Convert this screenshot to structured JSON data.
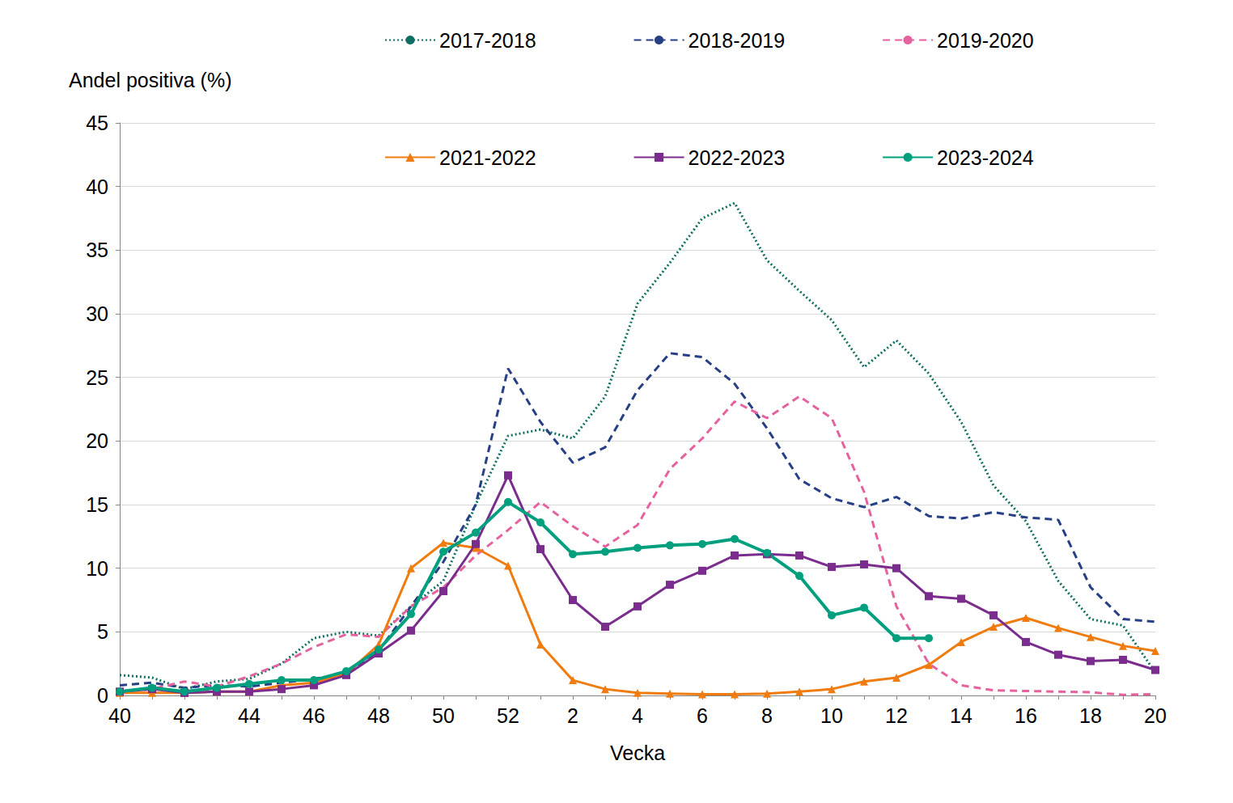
{
  "chart_data": {
    "type": "line",
    "y_label": "Andel positiva (%)",
    "x_label": "Vecka",
    "categories": [
      40,
      null,
      42,
      null,
      44,
      null,
      46,
      null,
      48,
      null,
      50,
      null,
      52,
      null,
      2,
      null,
      4,
      null,
      6,
      null,
      8,
      null,
      10,
      null,
      12,
      null,
      14,
      null,
      16,
      null,
      18,
      null,
      20
    ],
    "ylim": [
      0,
      45
    ],
    "yticks": [
      0,
      5,
      10,
      15,
      20,
      25,
      30,
      35,
      40,
      45
    ],
    "grid": true,
    "legend": "top",
    "series": [
      {
        "name": "2017-2018",
        "color": "#0e6f62",
        "line_style": "dotted",
        "marker": "none",
        "values": [
          1.6,
          1.4,
          0.5,
          1.1,
          1.3,
          2.5,
          4.5,
          5.0,
          4.7,
          7.0,
          9.0,
          15.0,
          20.4,
          20.9,
          20.2,
          23.5,
          30.8,
          34.0,
          37.5,
          38.7,
          34.2,
          31.8,
          29.5,
          25.8,
          27.9,
          25.3,
          21.5,
          16.5,
          13.7,
          9.0,
          6.0,
          5.5,
          1.8
        ]
      },
      {
        "name": "2018-2019",
        "color": "#263f85",
        "line_style": "dashed",
        "marker": "none",
        "values": [
          0.8,
          1.0,
          0.6,
          0.8,
          0.7,
          1.0,
          1.3,
          1.7,
          3.5,
          7.0,
          10.5,
          15.0,
          25.7,
          21.5,
          18.3,
          19.5,
          24.0,
          26.9,
          26.6,
          24.5,
          21.0,
          17.0,
          15.5,
          14.8,
          15.6,
          14.1,
          13.9,
          14.4,
          14.0,
          13.8,
          8.5,
          6.0,
          5.8
        ]
      },
      {
        "name": "2019-2020",
        "color": "#e6629f",
        "line_style": "dashed",
        "marker": "none",
        "values": [
          0.3,
          0.5,
          1.1,
          0.7,
          1.5,
          2.5,
          3.8,
          4.8,
          4.6,
          7.0,
          8.5,
          11.0,
          13.0,
          15.2,
          13.3,
          11.7,
          13.4,
          17.8,
          20.2,
          23.1,
          21.8,
          23.5,
          21.8,
          16.0,
          7.0,
          2.5,
          0.8,
          0.4,
          0.35,
          0.3,
          0.25,
          0.05,
          0.1
        ]
      },
      {
        "name": "2021-2022",
        "color": "#f07c10",
        "line_style": "solid",
        "marker": "triangle",
        "values": [
          0.2,
          0.2,
          0.2,
          0.3,
          0.3,
          0.8,
          1.0,
          1.7,
          4.0,
          10.0,
          12.0,
          11.6,
          10.2,
          4.0,
          1.2,
          0.5,
          0.2,
          0.15,
          0.1,
          0.1,
          0.15,
          0.3,
          0.5,
          1.1,
          1.4,
          2.4,
          4.2,
          5.4,
          6.1,
          5.3,
          4.6,
          3.9,
          3.5
        ]
      },
      {
        "name": "2022-2023",
        "color": "#7b2d8e",
        "line_style": "solid",
        "marker": "square",
        "values": [
          0.3,
          0.5,
          0.2,
          0.3,
          0.3,
          0.5,
          0.8,
          1.6,
          3.3,
          5.1,
          8.2,
          11.9,
          17.3,
          11.5,
          7.5,
          5.4,
          7.0,
          8.7,
          9.8,
          11.0,
          11.1,
          11.0,
          10.1,
          10.3,
          10.0,
          7.8,
          7.6,
          6.3,
          4.2,
          3.2,
          2.7,
          2.8,
          2.0
        ]
      },
      {
        "name": "2023-2024",
        "color": "#00a07f",
        "line_style": "solid",
        "marker": "circle",
        "values": [
          0.3,
          0.6,
          0.3,
          0.6,
          0.9,
          1.2,
          1.2,
          1.9,
          3.6,
          6.4,
          11.3,
          12.8,
          15.2,
          13.6,
          11.1,
          11.3,
          11.6,
          11.8,
          11.9,
          12.3,
          11.2,
          9.4,
          6.3,
          6.9,
          4.5,
          4.5,
          null,
          null,
          null,
          null,
          null,
          null,
          null
        ]
      }
    ]
  }
}
